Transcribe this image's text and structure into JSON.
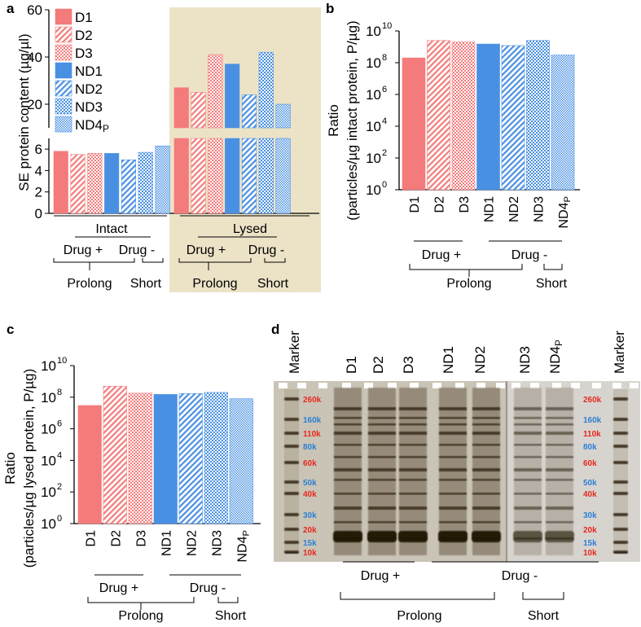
{
  "palette": {
    "drug": "#f47b7b",
    "nodrug": "#4a90e2",
    "lysed_bg": "#ece3c7",
    "gel_bg": "#c9c4b6"
  },
  "panels": {
    "a": "a",
    "b": "b",
    "c": "c",
    "d": "d"
  },
  "samples": [
    "D1",
    "D2",
    "D3",
    "ND1",
    "ND2",
    "ND3",
    "ND4P"
  ],
  "legend": [
    "D1",
    "D2",
    "D3",
    "ND1",
    "ND2",
    "ND3",
    "ND4P"
  ],
  "group_labels": {
    "intact": "Intact",
    "lysed": "Lysed",
    "drug_plus": "Drug +",
    "drug_minus": "Drug -",
    "prolong": "Prolong",
    "short": "Short"
  },
  "chart_data": [
    {
      "panel": "a",
      "type": "bar",
      "ylabel": "SE protein content (µg/µl)",
      "broken_axis": true,
      "ylim_lower": [
        0,
        7
      ],
      "yticks_lower": [
        0,
        2,
        4,
        6
      ],
      "ylim_upper": [
        10,
        60
      ],
      "yticks_upper": [
        20,
        40,
        60
      ],
      "categories": [
        "Intact",
        "Lysed"
      ],
      "series": [
        {
          "name": "D1",
          "values": [
            5.8,
            27
          ]
        },
        {
          "name": "D2",
          "values": [
            5.5,
            25
          ]
        },
        {
          "name": "D3",
          "values": [
            5.6,
            41
          ]
        },
        {
          "name": "ND1",
          "values": [
            5.6,
            37
          ]
        },
        {
          "name": "ND2",
          "values": [
            5.0,
            24
          ]
        },
        {
          "name": "ND3",
          "values": [
            5.7,
            42
          ]
        },
        {
          "name": "ND4P",
          "values": [
            6.3,
            20
          ]
        }
      ]
    },
    {
      "panel": "b",
      "type": "bar",
      "ylabel_line1": "Ratio",
      "ylabel_line2": "(particles/µg intact protein, P/µg)",
      "yscale": "log",
      "yticks_exp": [
        0,
        2,
        4,
        6,
        8,
        10
      ],
      "categories": [
        "D1",
        "D2",
        "D3",
        "ND1",
        "ND2",
        "ND3",
        "ND4P"
      ],
      "values": [
        200000000.0,
        2500000000.0,
        2000000000.0,
        1500000000.0,
        1200000000.0,
        2500000000.0,
        300000000.0
      ]
    },
    {
      "panel": "c",
      "type": "bar",
      "ylabel_line1": "Ratio",
      "ylabel_line2": "(particles/µg lysed protein, P/µg)",
      "yscale": "log",
      "yticks_exp": [
        0,
        2,
        4,
        6,
        8,
        10
      ],
      "categories": [
        "D1",
        "D2",
        "D3",
        "ND1",
        "ND2",
        "ND3",
        "ND4P"
      ],
      "values": [
        30000000.0,
        500000000.0,
        180000000.0,
        150000000.0,
        170000000.0,
        200000000.0,
        80000000.0
      ]
    }
  ],
  "gel": {
    "lanes": [
      "Marker",
      "D1",
      "D2",
      "D3",
      "ND1",
      "ND2",
      "ND3",
      "ND4P",
      "Marker"
    ],
    "markers": [
      {
        "label": "260k",
        "color": "red"
      },
      {
        "label": "160k",
        "color": "blue"
      },
      {
        "label": "110k",
        "color": "red"
      },
      {
        "label": "80k",
        "color": "blue"
      },
      {
        "label": "60k",
        "color": "red"
      },
      {
        "label": "50k",
        "color": "blue"
      },
      {
        "label": "40k",
        "color": "red"
      },
      {
        "label": "30k",
        "color": "blue"
      },
      {
        "label": "20k",
        "color": "red"
      },
      {
        "label": "15k",
        "color": "blue"
      },
      {
        "label": "10k",
        "color": "red"
      }
    ]
  }
}
